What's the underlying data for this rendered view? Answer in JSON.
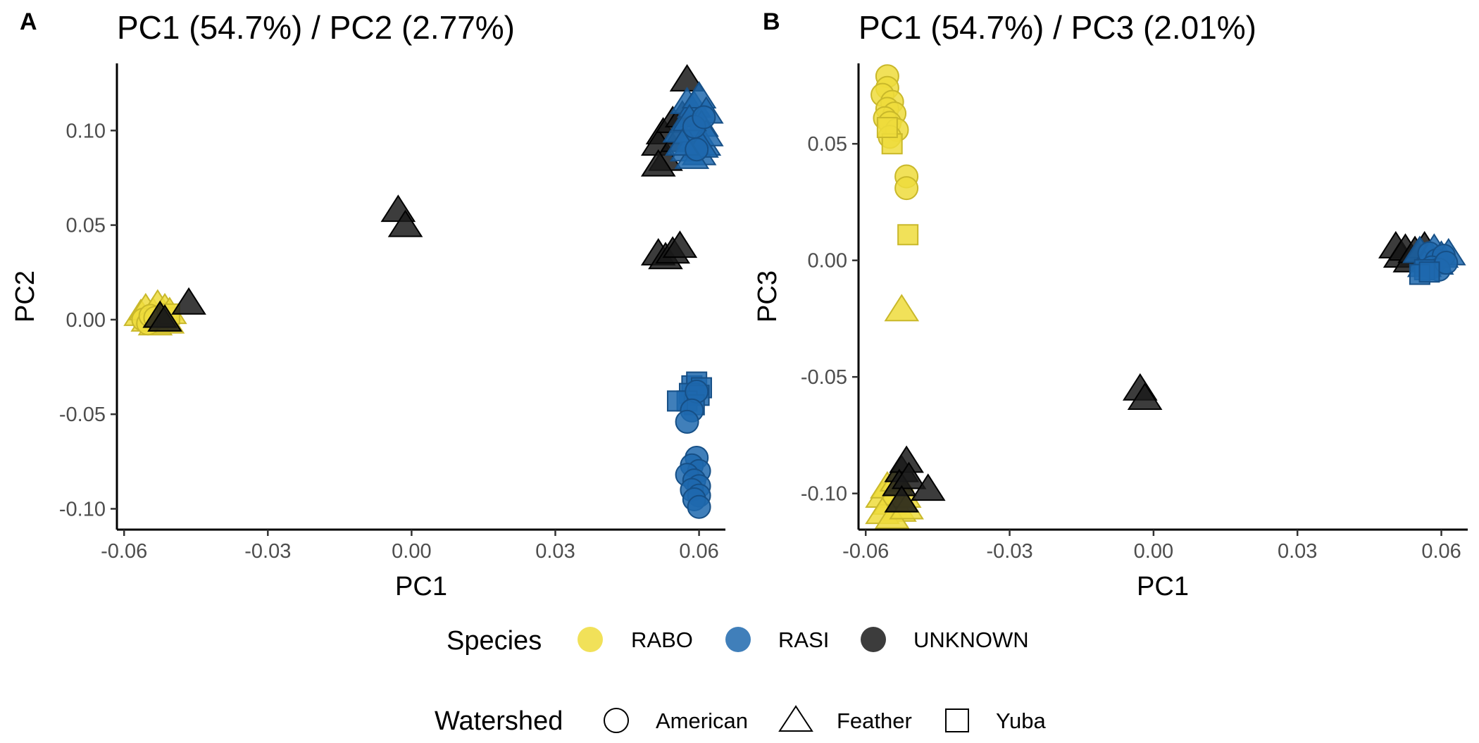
{
  "colors": {
    "RABO": "#EEDC3C",
    "RASI": "#1F68AE",
    "UNKNOWN": "#1A1A1A"
  },
  "legend": {
    "species": {
      "title": "Species",
      "items": [
        {
          "label": "RABO",
          "color": "#EEDC3C"
        },
        {
          "label": "RASI",
          "color": "#1F68AE"
        },
        {
          "label": "UNKNOWN",
          "color": "#1A1A1A"
        }
      ]
    },
    "watershed": {
      "title": "Watershed",
      "items": [
        {
          "label": "American",
          "shape": "circle"
        },
        {
          "label": "Feather",
          "shape": "triangle"
        },
        {
          "label": "Yuba",
          "shape": "square"
        }
      ]
    }
  },
  "chart_data": [
    {
      "type": "scatter",
      "panel_label": "A",
      "title": "PC1 (54.7%) / PC2 (2.77%)",
      "xlabel": "PC1",
      "ylabel": "PC2",
      "xlim": [
        -0.0615,
        0.0655
      ],
      "ylim": [
        -0.111,
        0.1355
      ],
      "xticks": [
        -0.06,
        -0.03,
        0.0,
        0.03,
        0.06
      ],
      "xtick_labels": [
        "-0.06",
        "-0.03",
        "0.00",
        "0.03",
        "0.06"
      ],
      "yticks": [
        -0.1,
        -0.05,
        0.0,
        0.05,
        0.1
      ],
      "ytick_labels": [
        "-0.10",
        "-0.05",
        "0.00",
        "0.05",
        "0.10"
      ],
      "grid": false,
      "points": [
        {
          "x": -0.0565,
          "y": 0.003,
          "species": "RABO",
          "shape": "triangle"
        },
        {
          "x": -0.0555,
          "y": 0.006,
          "species": "RABO",
          "shape": "triangle"
        },
        {
          "x": -0.055,
          "y": 0.0,
          "species": "RABO",
          "shape": "triangle"
        },
        {
          "x": -0.054,
          "y": 0.004,
          "species": "RABO",
          "shape": "triangle"
        },
        {
          "x": -0.0535,
          "y": -0.002,
          "species": "RABO",
          "shape": "triangle"
        },
        {
          "x": -0.053,
          "y": 0.008,
          "species": "RABO",
          "shape": "triangle"
        },
        {
          "x": -0.052,
          "y": 0.002,
          "species": "RABO",
          "shape": "triangle"
        },
        {
          "x": -0.0515,
          "y": 0.006,
          "species": "RABO",
          "shape": "triangle"
        },
        {
          "x": -0.051,
          "y": -0.001,
          "species": "RABO",
          "shape": "triangle"
        },
        {
          "x": -0.0505,
          "y": 0.004,
          "species": "RABO",
          "shape": "triangle"
        },
        {
          "x": -0.056,
          "y": 0.0,
          "species": "RABO",
          "shape": "circle"
        },
        {
          "x": -0.055,
          "y": -0.002,
          "species": "RABO",
          "shape": "circle"
        },
        {
          "x": -0.0545,
          "y": 0.002,
          "species": "RABO",
          "shape": "circle"
        },
        {
          "x": -0.0535,
          "y": 0.001,
          "species": "RABO",
          "shape": "circle"
        },
        {
          "x": -0.051,
          "y": 0.001,
          "species": "RABO",
          "shape": "square"
        },
        {
          "x": -0.0505,
          "y": 0.003,
          "species": "RABO",
          "shape": "square"
        },
        {
          "x": -0.0525,
          "y": 0.002,
          "species": "UNKNOWN",
          "shape": "triangle"
        },
        {
          "x": -0.0515,
          "y": 0.0,
          "species": "UNKNOWN",
          "shape": "triangle"
        },
        {
          "x": -0.0465,
          "y": 0.009,
          "species": "UNKNOWN",
          "shape": "triangle"
        },
        {
          "x": -0.0028,
          "y": 0.058,
          "species": "UNKNOWN",
          "shape": "triangle"
        },
        {
          "x": -0.0013,
          "y": 0.05,
          "species": "UNKNOWN",
          "shape": "triangle"
        },
        {
          "x": 0.0515,
          "y": 0.035,
          "species": "UNKNOWN",
          "shape": "triangle"
        },
        {
          "x": 0.053,
          "y": 0.033,
          "species": "UNKNOWN",
          "shape": "triangle"
        },
        {
          "x": 0.0545,
          "y": 0.036,
          "species": "UNKNOWN",
          "shape": "triangle"
        },
        {
          "x": 0.056,
          "y": 0.039,
          "species": "UNKNOWN",
          "shape": "triangle"
        },
        {
          "x": 0.0575,
          "y": 0.127,
          "species": "UNKNOWN",
          "shape": "triangle"
        },
        {
          "x": 0.0525,
          "y": 0.099,
          "species": "UNKNOWN",
          "shape": "triangle"
        },
        {
          "x": 0.0515,
          "y": 0.093,
          "species": "UNKNOWN",
          "shape": "triangle"
        },
        {
          "x": 0.053,
          "y": 0.085,
          "species": "UNKNOWN",
          "shape": "triangle"
        },
        {
          "x": 0.0515,
          "y": 0.082,
          "species": "UNKNOWN",
          "shape": "triangle"
        },
        {
          "x": 0.0545,
          "y": 0.105,
          "species": "UNKNOWN",
          "shape": "triangle"
        },
        {
          "x": 0.0565,
          "y": 0.108,
          "species": "UNKNOWN",
          "shape": "triangle"
        },
        {
          "x": 0.0555,
          "y": 0.095,
          "species": "UNKNOWN",
          "shape": "triangle"
        },
        {
          "x": 0.0575,
          "y": 0.115,
          "species": "RASI",
          "shape": "triangle"
        },
        {
          "x": 0.059,
          "y": 0.113,
          "species": "RASI",
          "shape": "triangle"
        },
        {
          "x": 0.06,
          "y": 0.118,
          "species": "RASI",
          "shape": "triangle"
        },
        {
          "x": 0.0615,
          "y": 0.11,
          "species": "RASI",
          "shape": "triangle"
        },
        {
          "x": 0.0605,
          "y": 0.103,
          "species": "RASI",
          "shape": "triangle"
        },
        {
          "x": 0.059,
          "y": 0.097,
          "species": "RASI",
          "shape": "triangle"
        },
        {
          "x": 0.061,
          "y": 0.093,
          "species": "RASI",
          "shape": "triangle"
        },
        {
          "x": 0.0575,
          "y": 0.09,
          "species": "RASI",
          "shape": "triangle"
        },
        {
          "x": 0.06,
          "y": 0.088,
          "species": "RASI",
          "shape": "triangle"
        },
        {
          "x": 0.0615,
          "y": 0.098,
          "species": "RASI",
          "shape": "triangle"
        },
        {
          "x": 0.056,
          "y": 0.1,
          "species": "RASI",
          "shape": "triangle"
        },
        {
          "x": 0.058,
          "y": 0.106,
          "species": "RASI",
          "shape": "triangle"
        },
        {
          "x": 0.0605,
          "y": 0.092,
          "species": "RASI",
          "shape": "triangle"
        },
        {
          "x": 0.0585,
          "y": 0.086,
          "species": "RASI",
          "shape": "triangle"
        },
        {
          "x": 0.0565,
          "y": 0.093,
          "species": "RASI",
          "shape": "triangle"
        },
        {
          "x": 0.059,
          "y": 0.102,
          "species": "RASI",
          "shape": "circle"
        },
        {
          "x": 0.061,
          "y": 0.107,
          "species": "RASI",
          "shape": "circle"
        },
        {
          "x": 0.0595,
          "y": 0.09,
          "species": "RASI",
          "shape": "circle"
        },
        {
          "x": 0.0585,
          "y": -0.035,
          "species": "RASI",
          "shape": "square"
        },
        {
          "x": 0.0595,
          "y": -0.033,
          "species": "RASI",
          "shape": "square"
        },
        {
          "x": 0.0605,
          "y": -0.036,
          "species": "RASI",
          "shape": "square"
        },
        {
          "x": 0.058,
          "y": -0.039,
          "species": "RASI",
          "shape": "square"
        },
        {
          "x": 0.06,
          "y": -0.04,
          "species": "RASI",
          "shape": "square"
        },
        {
          "x": 0.0575,
          "y": -0.043,
          "species": "RASI",
          "shape": "square"
        },
        {
          "x": 0.059,
          "y": -0.045,
          "species": "RASI",
          "shape": "square"
        },
        {
          "x": 0.0555,
          "y": -0.043,
          "species": "RASI",
          "shape": "square"
        },
        {
          "x": 0.0595,
          "y": -0.038,
          "species": "RASI",
          "shape": "circle"
        },
        {
          "x": 0.0585,
          "y": -0.048,
          "species": "RASI",
          "shape": "circle"
        },
        {
          "x": 0.0575,
          "y": -0.054,
          "species": "RASI",
          "shape": "circle"
        },
        {
          "x": 0.0595,
          "y": -0.073,
          "species": "RASI",
          "shape": "circle"
        },
        {
          "x": 0.0585,
          "y": -0.077,
          "species": "RASI",
          "shape": "circle"
        },
        {
          "x": 0.06,
          "y": -0.08,
          "species": "RASI",
          "shape": "circle"
        },
        {
          "x": 0.0575,
          "y": -0.082,
          "species": "RASI",
          "shape": "circle"
        },
        {
          "x": 0.059,
          "y": -0.085,
          "species": "RASI",
          "shape": "circle"
        },
        {
          "x": 0.06,
          "y": -0.088,
          "species": "RASI",
          "shape": "circle"
        },
        {
          "x": 0.0585,
          "y": -0.09,
          "species": "RASI",
          "shape": "circle"
        },
        {
          "x": 0.06,
          "y": -0.093,
          "species": "RASI",
          "shape": "circle"
        },
        {
          "x": 0.059,
          "y": -0.095,
          "species": "RASI",
          "shape": "circle"
        },
        {
          "x": 0.06,
          "y": -0.099,
          "species": "RASI",
          "shape": "circle"
        }
      ]
    },
    {
      "type": "scatter",
      "panel_label": "B",
      "title": "PC1 (54.7%) / PC3 (2.01%)",
      "xlabel": "PC1",
      "ylabel": "PC3",
      "xlim": [
        -0.0615,
        0.0655
      ],
      "ylim": [
        -0.1155,
        0.0845
      ],
      "xticks": [
        -0.06,
        -0.03,
        0.0,
        0.03,
        0.06
      ],
      "xtick_labels": [
        "-0.06",
        "-0.03",
        "0.00",
        "0.03",
        "0.06"
      ],
      "yticks": [
        -0.1,
        -0.05,
        0.0,
        0.05
      ],
      "ytick_labels": [
        "-0.10",
        "-0.05",
        "0.00",
        "0.05"
      ],
      "grid": false,
      "points": [
        {
          "x": -0.0555,
          "y": 0.079,
          "species": "RABO",
          "shape": "circle"
        },
        {
          "x": -0.0555,
          "y": 0.074,
          "species": "RABO",
          "shape": "circle"
        },
        {
          "x": -0.0565,
          "y": 0.071,
          "species": "RABO",
          "shape": "circle"
        },
        {
          "x": -0.0545,
          "y": 0.068,
          "species": "RABO",
          "shape": "circle"
        },
        {
          "x": -0.0555,
          "y": 0.065,
          "species": "RABO",
          "shape": "circle"
        },
        {
          "x": -0.054,
          "y": 0.063,
          "species": "RABO",
          "shape": "circle"
        },
        {
          "x": -0.056,
          "y": 0.061,
          "species": "RABO",
          "shape": "circle"
        },
        {
          "x": -0.055,
          "y": 0.059,
          "species": "RABO",
          "shape": "circle"
        },
        {
          "x": -0.0535,
          "y": 0.056,
          "species": "RABO",
          "shape": "circle"
        },
        {
          "x": -0.055,
          "y": 0.053,
          "species": "RABO",
          "shape": "circle"
        },
        {
          "x": -0.0545,
          "y": 0.05,
          "species": "RABO",
          "shape": "square"
        },
        {
          "x": -0.0555,
          "y": 0.057,
          "species": "RABO",
          "shape": "square"
        },
        {
          "x": -0.0515,
          "y": 0.036,
          "species": "RABO",
          "shape": "circle"
        },
        {
          "x": -0.0515,
          "y": 0.031,
          "species": "RABO",
          "shape": "circle"
        },
        {
          "x": -0.0512,
          "y": 0.011,
          "species": "RABO",
          "shape": "square"
        },
        {
          "x": -0.0525,
          "y": -0.021,
          "species": "RABO",
          "shape": "triangle"
        },
        {
          "x": -0.0565,
          "y": -0.101,
          "species": "RABO",
          "shape": "triangle"
        },
        {
          "x": -0.0555,
          "y": -0.097,
          "species": "RABO",
          "shape": "triangle"
        },
        {
          "x": -0.055,
          "y": -0.104,
          "species": "RABO",
          "shape": "triangle"
        },
        {
          "x": -0.054,
          "y": -0.1,
          "species": "RABO",
          "shape": "triangle"
        },
        {
          "x": -0.0535,
          "y": -0.094,
          "species": "RABO",
          "shape": "triangle"
        },
        {
          "x": -0.053,
          "y": -0.107,
          "species": "RABO",
          "shape": "triangle"
        },
        {
          "x": -0.052,
          "y": -0.101,
          "species": "RABO",
          "shape": "triangle"
        },
        {
          "x": -0.0565,
          "y": -0.108,
          "species": "RABO",
          "shape": "triangle"
        },
        {
          "x": -0.0545,
          "y": -0.11,
          "species": "RABO",
          "shape": "triangle"
        },
        {
          "x": -0.0515,
          "y": -0.106,
          "species": "RABO",
          "shape": "triangle"
        },
        {
          "x": -0.0525,
          "y": -0.09,
          "species": "UNKNOWN",
          "shape": "triangle"
        },
        {
          "x": -0.0515,
          "y": -0.086,
          "species": "UNKNOWN",
          "shape": "triangle"
        },
        {
          "x": -0.053,
          "y": -0.096,
          "species": "UNKNOWN",
          "shape": "triangle"
        },
        {
          "x": -0.051,
          "y": -0.093,
          "species": "UNKNOWN",
          "shape": "triangle"
        },
        {
          "x": -0.0525,
          "y": -0.103,
          "species": "UNKNOWN",
          "shape": "triangle"
        },
        {
          "x": -0.047,
          "y": -0.098,
          "species": "UNKNOWN",
          "shape": "triangle"
        },
        {
          "x": -0.0028,
          "y": -0.055,
          "species": "UNKNOWN",
          "shape": "triangle"
        },
        {
          "x": -0.0018,
          "y": -0.059,
          "species": "UNKNOWN",
          "shape": "triangle"
        },
        {
          "x": 0.0505,
          "y": 0.006,
          "species": "UNKNOWN",
          "shape": "triangle"
        },
        {
          "x": 0.0515,
          "y": 0.002,
          "species": "UNKNOWN",
          "shape": "triangle"
        },
        {
          "x": 0.0525,
          "y": 0.005,
          "species": "UNKNOWN",
          "shape": "triangle"
        },
        {
          "x": 0.0535,
          "y": 0.0,
          "species": "UNKNOWN",
          "shape": "triangle"
        },
        {
          "x": 0.0545,
          "y": 0.004,
          "species": "UNKNOWN",
          "shape": "triangle"
        },
        {
          "x": 0.0565,
          "y": 0.006,
          "species": "UNKNOWN",
          "shape": "triangle"
        },
        {
          "x": 0.0555,
          "y": 0.004,
          "species": "RASI",
          "shape": "triangle"
        },
        {
          "x": 0.057,
          "y": 0.001,
          "species": "RASI",
          "shape": "triangle"
        },
        {
          "x": 0.0585,
          "y": 0.005,
          "species": "RASI",
          "shape": "triangle"
        },
        {
          "x": 0.06,
          "y": 0.002,
          "species": "RASI",
          "shape": "triangle"
        },
        {
          "x": 0.0565,
          "y": -0.002,
          "species": "RASI",
          "shape": "triangle"
        },
        {
          "x": 0.059,
          "y": -0.001,
          "species": "RASI",
          "shape": "triangle"
        },
        {
          "x": 0.0615,
          "y": 0.003,
          "species": "RASI",
          "shape": "triangle"
        },
        {
          "x": 0.0575,
          "y": 0.003,
          "species": "RASI",
          "shape": "circle"
        },
        {
          "x": 0.059,
          "y": 0.0,
          "species": "RASI",
          "shape": "circle"
        },
        {
          "x": 0.0605,
          "y": 0.002,
          "species": "RASI",
          "shape": "circle"
        },
        {
          "x": 0.058,
          "y": -0.003,
          "species": "RASI",
          "shape": "circle"
        },
        {
          "x": 0.0595,
          "y": -0.004,
          "species": "RASI",
          "shape": "circle"
        },
        {
          "x": 0.061,
          "y": -0.001,
          "species": "RASI",
          "shape": "circle"
        },
        {
          "x": 0.0565,
          "y": -0.004,
          "species": "RASI",
          "shape": "square"
        },
        {
          "x": 0.0555,
          "y": -0.006,
          "species": "RASI",
          "shape": "square"
        },
        {
          "x": 0.0575,
          "y": -0.005,
          "species": "RASI",
          "shape": "square"
        }
      ]
    }
  ]
}
